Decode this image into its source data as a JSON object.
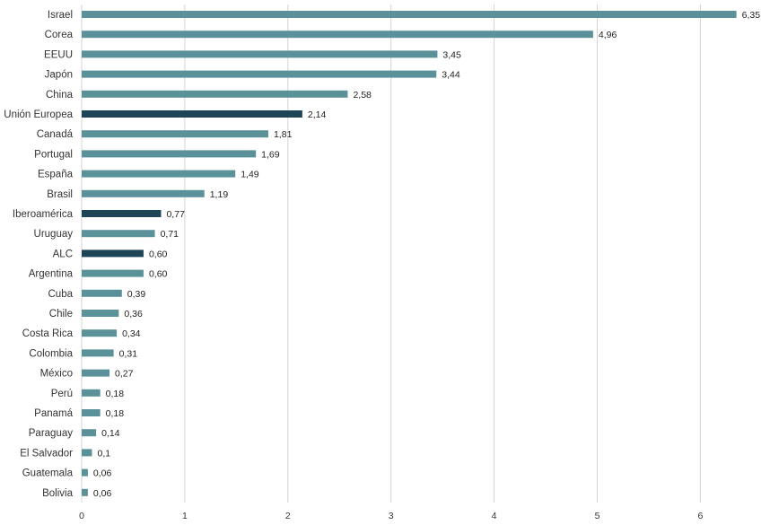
{
  "chart_data": {
    "type": "bar",
    "orientation": "horizontal",
    "title": "",
    "xlabel": "",
    "ylabel": "",
    "xlim": [
      0,
      6.9
    ],
    "xticks": [
      "0",
      "1",
      "2",
      "3",
      "4",
      "5",
      "6"
    ],
    "grid": "vertical",
    "legend": "none",
    "colors": {
      "default": "#5b9299",
      "highlight": "#1e4556"
    },
    "categories": [
      "Israel",
      "Corea",
      "EEUU",
      "Japón",
      "China",
      "Unión Europea",
      "Canadá",
      "Portugal",
      "España",
      "Brasil",
      "Iberoamérica",
      "Uruguay",
      "ALC",
      "Argentina",
      "Cuba",
      "Chile",
      "Costa Rica",
      "Colombia",
      "México",
      "Perú",
      "Panamá",
      "Paraguay",
      "El Salvador",
      "Guatemala",
      "Bolivia"
    ],
    "values": [
      6.35,
      4.96,
      3.45,
      3.44,
      2.58,
      2.14,
      1.81,
      1.69,
      1.49,
      1.19,
      0.77,
      0.71,
      0.6,
      0.6,
      0.39,
      0.36,
      0.34,
      0.31,
      0.27,
      0.18,
      0.18,
      0.14,
      0.1,
      0.06,
      0.06
    ],
    "value_labels": [
      "6,35",
      "4,96",
      "3,45",
      "3,44",
      "2,58",
      "2,14",
      "1,81",
      "1,69",
      "1,49",
      "1,19",
      "0,77",
      "0,71",
      "0,60",
      "0,60",
      "0,39",
      "0,36",
      "0,34",
      "0,31",
      "0,27",
      "0,18",
      "0,18",
      "0,14",
      "0,1",
      "0,06",
      "0,06"
    ],
    "highlighted": [
      "Unión Europea",
      "Iberoamérica",
      "ALC"
    ]
  }
}
